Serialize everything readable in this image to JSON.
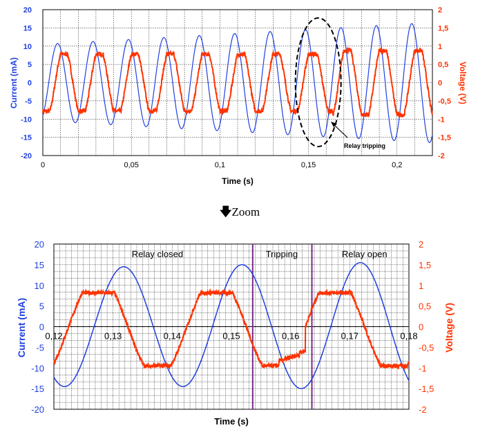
{
  "colors": {
    "current": "#1f3fe0",
    "voltage": "#ff3300",
    "marker": "#7a2a8a"
  },
  "zoom_caption": {
    "arrow": "🡇",
    "text": "Zoom"
  },
  "chart_data": [
    {
      "type": "line",
      "xlabel": "Time (s)",
      "ylabel_left": "Current (mA)",
      "ylabel_right": "Voltage (V)",
      "xlim": [
        0,
        0.22
      ],
      "ylim_left": [
        -20,
        20
      ],
      "ylim_right": [
        -2,
        2
      ],
      "x_ticks": [
        "0",
        "0,05",
        "0,1",
        "0,15",
        "0,2"
      ],
      "y_ticks_left": [
        "20",
        "15",
        "10",
        "5",
        "0",
        "-5",
        "-10",
        "-15",
        "-20"
      ],
      "y_ticks_right": [
        "2",
        "1,5",
        "1",
        "0,5",
        "0",
        "-0,5",
        "-1",
        "-1,5",
        "-2"
      ],
      "grid": true,
      "annotation": "Relay tripping",
      "series": [
        {
          "name": "Current (mA)",
          "axis": "left",
          "frequency_hz": 50,
          "amplitude_start": 10.5,
          "amplitude_end": 16.5,
          "phase_deg": -60
        },
        {
          "name": "Voltage (V)",
          "axis": "right",
          "frequency_hz": 50,
          "amplitude_closed": 0.78,
          "amplitude_open": 0.88,
          "phase_deg": 0
        }
      ]
    },
    {
      "type": "line",
      "xlabel": "Time (s)",
      "ylabel_left": "Current (mA)",
      "ylabel_right": "Voltage (V)",
      "xlim": [
        0.12,
        0.18
      ],
      "ylim_left": [
        -20,
        20
      ],
      "ylim_right": [
        -2,
        2
      ],
      "x_ticks": [
        "0,12",
        "0,13",
        "0,14",
        "0,15",
        "0,16",
        "0,17",
        "0,18"
      ],
      "y_ticks_left": [
        "20",
        "15",
        "10",
        "5",
        "0",
        "-5",
        "-10",
        "-15",
        "-20"
      ],
      "y_ticks_right": [
        "2",
        "1,5",
        "1",
        "0,5",
        "0",
        "-0,5",
        "-1",
        "-1,5",
        "-2"
      ],
      "grid": true,
      "region_labels": [
        "Relay closed",
        "Tripping",
        "Relay open"
      ],
      "markers_x": [
        0.1536,
        0.1636
      ],
      "series": [
        {
          "name": "Current (mA)",
          "axis": "left",
          "peaks": [
            14.5,
            -14.5,
            15,
            -15,
            15.5,
            -15.5
          ]
        },
        {
          "name": "Voltage (V)",
          "axis": "right",
          "plateau_high": 0.82,
          "plateau_low": -0.95
        }
      ]
    }
  ]
}
